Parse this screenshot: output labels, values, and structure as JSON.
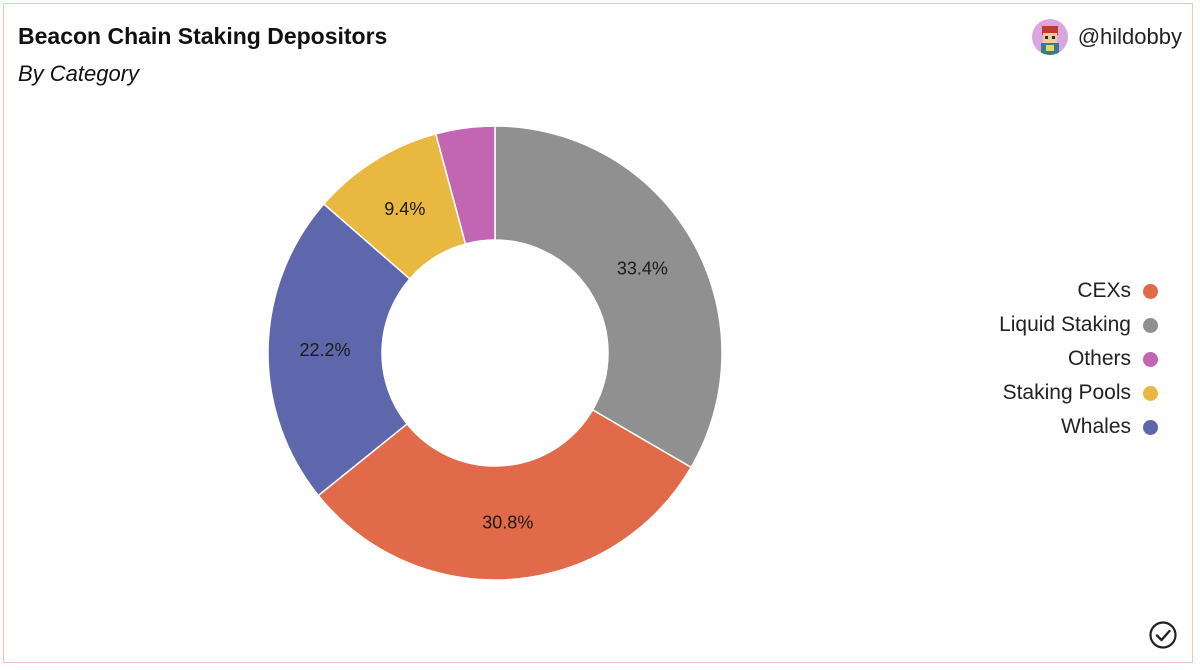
{
  "header": {
    "title": "Beacon Chain Staking Depositors",
    "subtitle": "By Category",
    "author_handle": "@hildobby"
  },
  "colors": {
    "CEXs": "#e06a4a",
    "Liquid Staking": "#909090",
    "Others": "#c266b3",
    "Staking Pools": "#e8b840",
    "Whales": "#5f67ac"
  },
  "legend": [
    {
      "label": "CEXs"
    },
    {
      "label": "Liquid Staking"
    },
    {
      "label": "Others"
    },
    {
      "label": "Staking Pools"
    },
    {
      "label": "Whales"
    }
  ],
  "chart_data": {
    "type": "pie",
    "donut": true,
    "title": "Beacon Chain Staking Depositors",
    "subtitle": "By Category",
    "slices": [
      {
        "label": "Liquid Staking",
        "value": 33.4,
        "value_label": "33.4%"
      },
      {
        "label": "CEXs",
        "value": 30.8,
        "value_label": "30.8%"
      },
      {
        "label": "Whales",
        "value": 22.2,
        "value_label": "22.2%"
      },
      {
        "label": "Staking Pools",
        "value": 9.4,
        "value_label": "9.4%"
      },
      {
        "label": "Others",
        "value": 4.2,
        "value_label": ""
      }
    ],
    "legend_position": "right"
  },
  "icons": {
    "avatar": "avatar-icon",
    "check": "check-circle-icon"
  }
}
